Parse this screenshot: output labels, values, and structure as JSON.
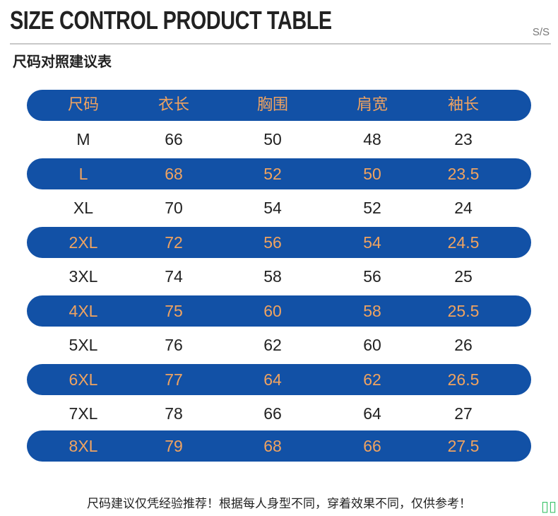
{
  "header": {
    "title": "SIZE CONTROL PRODUCT TABLE",
    "season": "S/S",
    "subtitle": "尺码对照建议表"
  },
  "table": {
    "columns": [
      "尺码",
      "衣长",
      "胸围",
      "肩宽",
      "袖长"
    ],
    "rows": [
      [
        "M",
        "66",
        "50",
        "48",
        "23"
      ],
      [
        "L",
        "68",
        "52",
        "50",
        "23.5"
      ],
      [
        "XL",
        "70",
        "54",
        "52",
        "24"
      ],
      [
        "2XL",
        "72",
        "56",
        "54",
        "24.5"
      ],
      [
        "3XL",
        "74",
        "58",
        "56",
        "25"
      ],
      [
        "4XL",
        "75",
        "60",
        "58",
        "25.5"
      ],
      [
        "5XL",
        "76",
        "62",
        "60",
        "26"
      ],
      [
        "6XL",
        "77",
        "64",
        "62",
        "26.5"
      ],
      [
        "7XL",
        "78",
        "66",
        "64",
        "27"
      ],
      [
        "8XL",
        "79",
        "68",
        "66",
        "27.5"
      ]
    ]
  },
  "footer": {
    "note": "尺码建议仅凭经验推荐！根据每人身型不同，穿着效果不同，仅供参考！"
  },
  "corner_mark": {
    "icon": "unknown-glyph-icon",
    "glyph": "▯▯",
    "color": "#3cc36a"
  },
  "colors": {
    "band": "#1251a6",
    "band_text": "#f0a360",
    "text": "#222222"
  }
}
